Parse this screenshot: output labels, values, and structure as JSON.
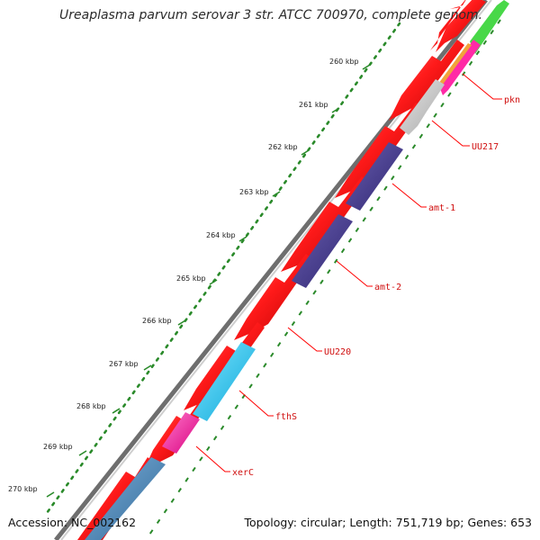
{
  "title": "Ureaplasma parvum serovar 3 str. ATCC 700970, complete genom...",
  "footer": {
    "accession": "Accession: NC_002162",
    "summary": "Topology: circular; Length: 751,719 bp; Genes: 653"
  },
  "ruler_ticks": [
    "260 kbp",
    "261 kbp",
    "262 kbp",
    "263 kbp",
    "264 kbp",
    "265 kbp",
    "266 kbp",
    "267 kbp",
    "268 kbp",
    "269 kbp",
    "270 kbp"
  ],
  "gene_labels": [
    "pkn",
    "UU217",
    "amt-1",
    "amt-2",
    "UU220",
    "fthS",
    "xerC"
  ],
  "colors": {
    "forward_gene": "#ff1a1a",
    "reverse_dark": "#4b3f8c",
    "reverse_cyan": "#1ec8f0",
    "reverse_magenta": "#ff2aa6",
    "reverse_grey": "#c4c4c4",
    "reverse_steel": "#4a86b8",
    "tick_green": "#2a8a2a",
    "label_red": "#d01010"
  }
}
